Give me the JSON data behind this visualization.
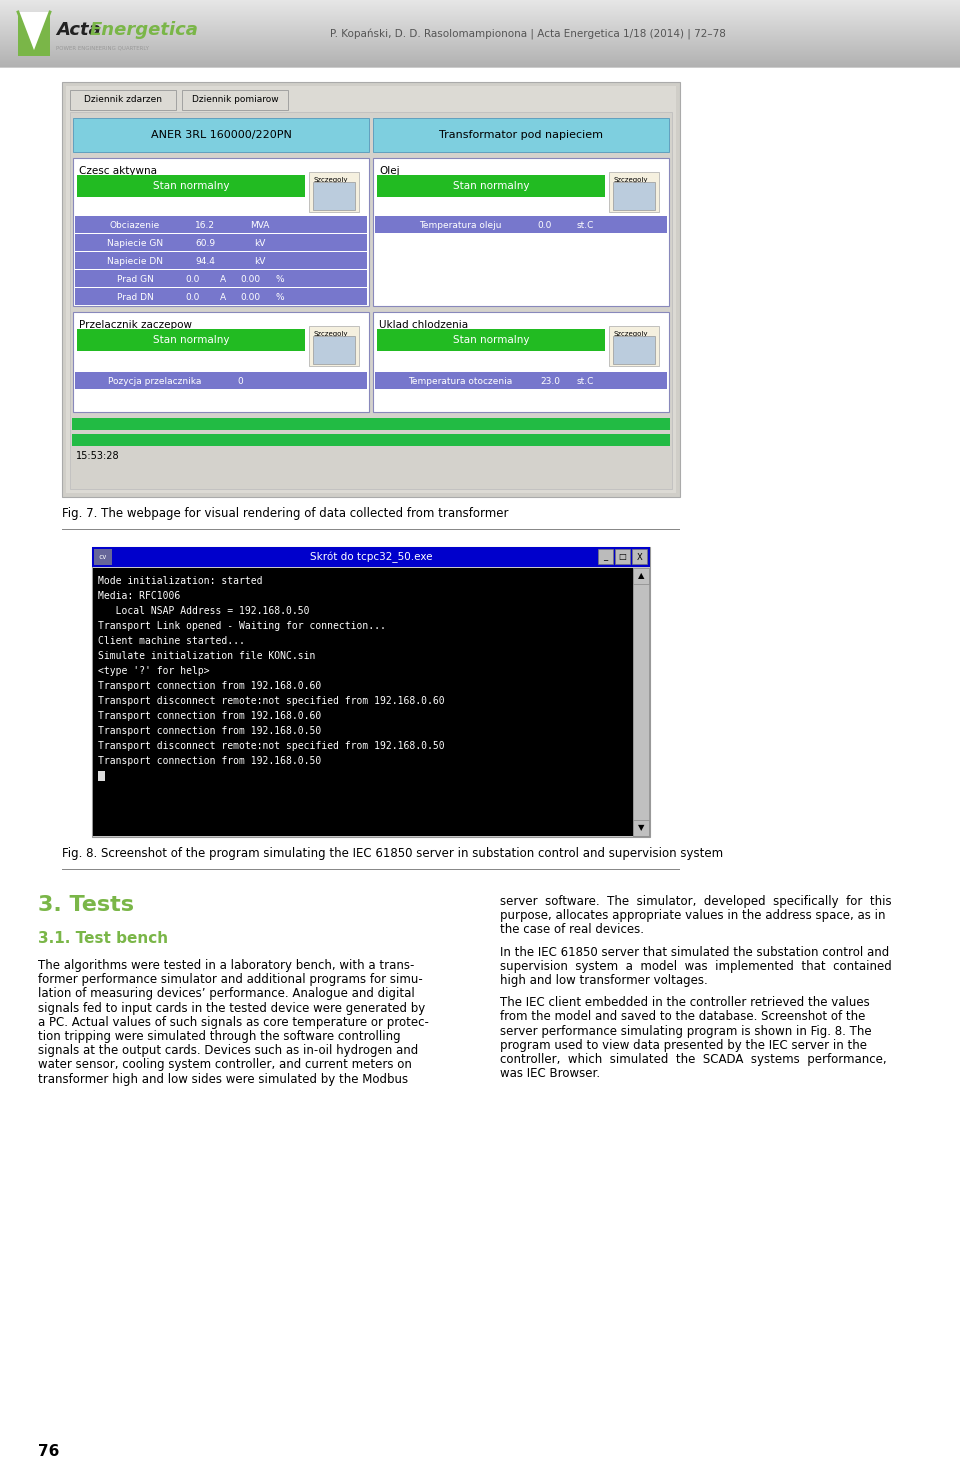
{
  "page_bg": "#ffffff",
  "header_text": "P. Kopański, D. D. Rasolomampionona | Acta Energetica 1/18 (2014) | 72–78",
  "fig7_caption": "Fig. 7. The webpage for visual rendering of data collected from transformer",
  "fig8_caption": "Fig. 8. Screenshot of the program simulating the IEC 61850 server in substation control and supervision system",
  "section_title": "3. Tests",
  "subsection_title": "3.1. Test bench",
  "left_col_lines": [
    "The algorithms were tested in a laboratory bench, with a trans-",
    "former performance simulator and additional programs for simu-",
    "lation of measuring devices’ performance. Analogue and digital",
    "signals fed to input cards in the tested device were generated by",
    "a PC. Actual values of such signals as core temperature or protec-",
    "tion tripping were simulated through the software controlling",
    "signals at the output cards. Devices such as in-oil hydrogen and",
    "water sensor, cooling system controller, and current meters on",
    "transformer high and low sides were simulated by the Modbus"
  ],
  "right_col_lines_p1": [
    "server  software.  The  simulator,  developed  specifically  for  this",
    "purpose, allocates appropriate values in the address space, as in",
    "the case of real devices."
  ],
  "right_col_lines_p2": [
    "In the IEC 61850 server that simulated the substation control and",
    "supervision  system  a  model  was  implemented  that  contained",
    "high and low transformer voltages."
  ],
  "right_col_lines_p3": [
    "The IEC client embedded in the controller retrieved the values",
    "from the model and saved to the database. Screenshot of the",
    "server performance simulating program is shown in Fig. 8. The",
    "program used to view data presented by the IEC server in the",
    "controller,  which  simulated  the  SCADA  systems  performance,",
    "was IEC Browser."
  ],
  "page_number": "76",
  "acta_green": "#7ab648",
  "acta_dark_green": "#5a8a30",
  "terminal_title": "Skrót do tcpc32_50.exe",
  "terminal_lines": [
    "Mode initialization: started",
    "Media: RFC1006",
    "   Local NSAP Address = 192.168.0.50",
    "Transport Link opened - Waiting for connection...",
    "Client machine started...",
    "Simulate initialization file KONC.sin",
    "<type '?' for help>",
    "Transport connection from 192.168.0.60",
    "Transport disconnect remote:not specified from 192.168.0.60",
    "Transport connection from 192.168.0.60",
    "Transport connection from 192.168.0.50",
    "Transport disconnect remote:not specified from 192.168.0.50",
    "Transport connection from 192.168.0.50"
  ],
  "scada_rows_left": [
    [
      "Obciazenie",
      "16.2",
      "MVA"
    ],
    [
      "Napiecie GN",
      "60.9",
      "kV"
    ],
    [
      "Napiecie DN",
      "94.4",
      "kV"
    ],
    [
      "Prad GN",
      "0.0",
      "A",
      "0.00",
      "%"
    ],
    [
      "Prad DN",
      "0.0",
      "A",
      "0.00",
      "%"
    ]
  ]
}
